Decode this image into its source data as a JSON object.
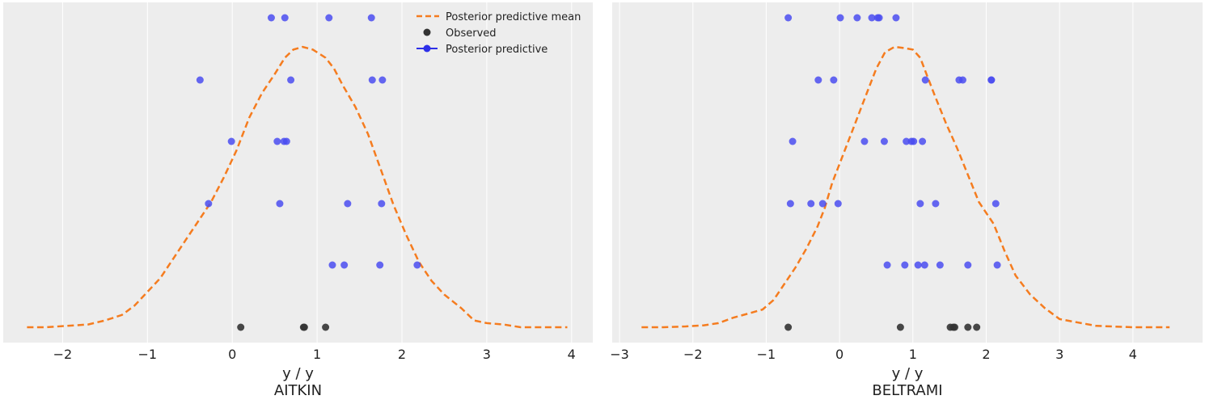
{
  "colors": {
    "panel_bg": "#ededed",
    "grid": "#ffffff",
    "mean_line": "#f57c1f",
    "predictive": "#4a4cf0",
    "observed": "#333333",
    "legend_predictive_line": "#2d2fe8"
  },
  "legend": {
    "mean_label": "Posterior predictive mean",
    "observed_label": "Observed",
    "predictive_label": "Posterior predictive"
  },
  "chart_data": [
    {
      "type": "scatter",
      "title": "AITKIN",
      "xlabel": "y / y",
      "ylabel": "",
      "xlim": [
        -2.7,
        4.25
      ],
      "xticks": [
        -2,
        -1,
        0,
        1,
        2,
        3,
        4
      ],
      "grid": true,
      "legend_position": "top-right",
      "observed": [
        0.1,
        0.84,
        0.85,
        1.1
      ],
      "predictive_rows": [
        [
          0.46,
          0.62,
          1.14,
          1.64
        ],
        [
          -0.38,
          0.69,
          1.65,
          1.77
        ],
        [
          -0.01,
          0.53,
          0.61,
          0.64
        ],
        [
          -0.28,
          0.56,
          1.36,
          1.76
        ],
        [
          1.18,
          1.32,
          1.74,
          2.18
        ]
      ],
      "mean_curve": [
        [
          -2.42,
          0.0
        ],
        [
          -2.2,
          0.0
        ],
        [
          -1.95,
          0.005
        ],
        [
          -1.7,
          0.01
        ],
        [
          -1.5,
          0.025
        ],
        [
          -1.3,
          0.045
        ],
        [
          -1.15,
          0.08
        ],
        [
          -1.0,
          0.13
        ],
        [
          -0.85,
          0.18
        ],
        [
          -0.7,
          0.25
        ],
        [
          -0.55,
          0.32
        ],
        [
          -0.4,
          0.39
        ],
        [
          -0.25,
          0.46
        ],
        [
          -0.1,
          0.55
        ],
        [
          0.05,
          0.65
        ],
        [
          0.2,
          0.77
        ],
        [
          0.35,
          0.86
        ],
        [
          0.5,
          0.93
        ],
        [
          0.62,
          0.99
        ],
        [
          0.72,
          1.02
        ],
        [
          0.83,
          1.03
        ],
        [
          0.95,
          1.02
        ],
        [
          1.1,
          0.99
        ],
        [
          1.2,
          0.95
        ],
        [
          1.3,
          0.89
        ],
        [
          1.45,
          0.81
        ],
        [
          1.6,
          0.71
        ],
        [
          1.75,
          0.58
        ],
        [
          1.9,
          0.45
        ],
        [
          2.05,
          0.34
        ],
        [
          2.2,
          0.24
        ],
        [
          2.35,
          0.17
        ],
        [
          2.5,
          0.12
        ],
        [
          2.7,
          0.07
        ],
        [
          2.85,
          0.025
        ],
        [
          3.0,
          0.015
        ],
        [
          3.2,
          0.01
        ],
        [
          3.4,
          0.0
        ],
        [
          3.6,
          0.0
        ],
        [
          3.95,
          0.0
        ]
      ]
    },
    {
      "type": "scatter",
      "title": "BELTRAMI",
      "xlabel": "y / y",
      "ylabel": "",
      "xlim": [
        -3.1,
        4.95
      ],
      "xticks": [
        -3,
        -2,
        -1,
        0,
        1,
        2,
        3,
        4
      ],
      "grid": true,
      "observed": [
        -0.7,
        0.83,
        1.51,
        1.55,
        1.57,
        1.75,
        1.87
      ],
      "predictive_rows": [
        [
          -0.7,
          0.01,
          0.24,
          0.44,
          0.52,
          0.54,
          0.77
        ],
        [
          -0.29,
          -0.08,
          1.17,
          1.63,
          1.68,
          2.07,
          2.07
        ],
        [
          -0.64,
          0.34,
          0.61,
          0.91,
          0.98,
          1.01,
          1.13
        ],
        [
          -0.67,
          -0.39,
          -0.23,
          -0.02,
          1.1,
          1.31,
          2.13
        ],
        [
          0.65,
          0.89,
          1.07,
          1.16,
          1.37,
          1.75,
          2.15
        ]
      ],
      "mean_curve": [
        [
          -2.7,
          0.0
        ],
        [
          -2.4,
          0.0
        ],
        [
          -2.1,
          0.003
        ],
        [
          -1.85,
          0.007
        ],
        [
          -1.65,
          0.015
        ],
        [
          -1.45,
          0.035
        ],
        [
          -1.25,
          0.05
        ],
        [
          -1.05,
          0.065
        ],
        [
          -0.9,
          0.1
        ],
        [
          -0.75,
          0.16
        ],
        [
          -0.6,
          0.22
        ],
        [
          -0.45,
          0.29
        ],
        [
          -0.3,
          0.37
        ],
        [
          -0.2,
          0.44
        ],
        [
          -0.1,
          0.53
        ],
        [
          0.0,
          0.6
        ],
        [
          0.1,
          0.67
        ],
        [
          0.2,
          0.74
        ],
        [
          0.3,
          0.81
        ],
        [
          0.4,
          0.88
        ],
        [
          0.5,
          0.95
        ],
        [
          0.62,
          1.01
        ],
        [
          0.75,
          1.03
        ],
        [
          0.9,
          1.025
        ],
        [
          1.0,
          1.02
        ],
        [
          1.1,
          0.99
        ],
        [
          1.2,
          0.92
        ],
        [
          1.3,
          0.85
        ],
        [
          1.45,
          0.75
        ],
        [
          1.6,
          0.66
        ],
        [
          1.75,
          0.56
        ],
        [
          1.9,
          0.46
        ],
        [
          2.1,
          0.38
        ],
        [
          2.25,
          0.28
        ],
        [
          2.4,
          0.19
        ],
        [
          2.6,
          0.12
        ],
        [
          2.8,
          0.07
        ],
        [
          3.0,
          0.03
        ],
        [
          3.2,
          0.02
        ],
        [
          3.5,
          0.005
        ],
        [
          4.0,
          0.0
        ],
        [
          4.5,
          0.0
        ]
      ]
    }
  ]
}
